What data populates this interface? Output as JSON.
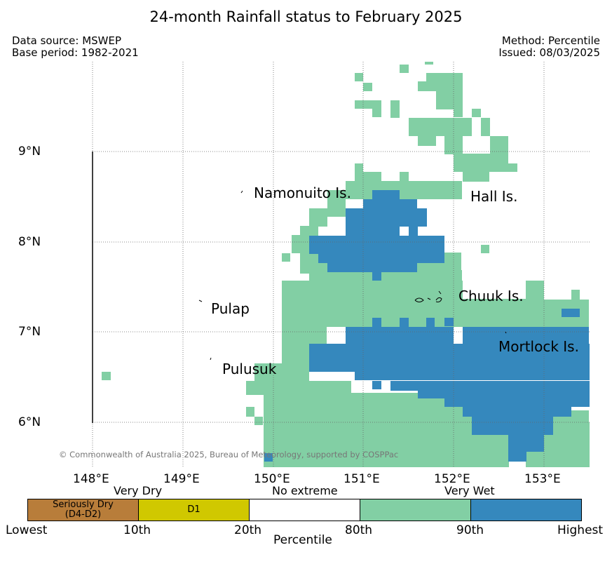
{
  "title": "24-month Rainfall status to February 2025",
  "meta": {
    "data_source": "Data source: MSWEP",
    "base_period": "Base period: 1982-2021",
    "method": "Method: Percentile",
    "issued": "Issued: 08/03/2025"
  },
  "axes": {
    "lat_labels": [
      "9°N",
      "8°N",
      "7°N",
      "6°N"
    ],
    "lon_labels": [
      "148°E",
      "149°E",
      "150°E",
      "151°E",
      "152°E",
      "153°E"
    ],
    "lat_range": [
      5.5,
      10.0
    ],
    "lon_range": [
      147.5,
      153.5
    ],
    "grid": true
  },
  "places": {
    "namonuito": "Namonuito Is.",
    "hall": "Hall Is.",
    "pulap": "Pulap",
    "chuuk": "Chuuk Is.",
    "mortlock": "Mortlock Is.",
    "pulusuk": "Pulusuk"
  },
  "credit": "© Commonwealth of Australia 2025, Bureau of Meteorology, supported by COSPPac",
  "colors": {
    "seriously_dry": "#b87d3a",
    "d1": "#d0c800",
    "no_extreme": "#ffffff",
    "very_wet": "#82cfa4",
    "highest": "#3588bd"
  },
  "legend": {
    "very_dry": "Very Dry",
    "no_extreme": "No extreme",
    "very_wet": "Very Wet",
    "seriously_dry": "Seriously Dry",
    "seriously_dry_sub": "(D4-D2)",
    "d1": "D1",
    "ticks": [
      "Lowest",
      "10th",
      "20th",
      "80th",
      "90th",
      "Highest"
    ],
    "axis_label": "Percentile"
  }
}
